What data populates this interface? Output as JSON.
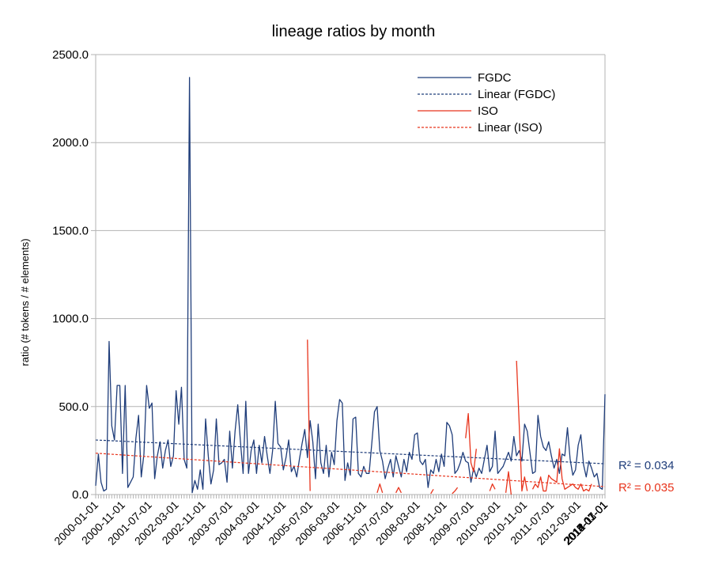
{
  "chart_data": {
    "type": "line",
    "title": "lineage ratios by month",
    "xlabel": "",
    "ylabel": "ratio (# tokens / # elements)",
    "ylim": [
      0,
      2500
    ],
    "yticks": [
      "0.0",
      "500.0",
      "1000.0",
      "1500.0",
      "2000.0",
      "2500.0"
    ],
    "xtick_labels": [
      "2000-01-01",
      "2000-11-01",
      "2001-07-01",
      "2002-03-01",
      "2002-11-01",
      "2003-07-01",
      "2004-03-01",
      "2004-11-01",
      "2005-07-01",
      "2006-03-01",
      "2006-11-01",
      "2007-07-01",
      "2008-03-01",
      "2008-11-01",
      "2009-07-01",
      "2010-03-01",
      "2010-11-01",
      "2011-07-01",
      "2012-03-01",
      "2012-11-01",
      "2013-07-01",
      "2014-03-01",
      "2014-11-01",
      "2015-07-01"
    ],
    "grid": true,
    "legend_placement": "top-right",
    "series": [
      {
        "name": "FGDC",
        "color": "#1f3d7a",
        "style": "solid",
        "values": [
          50,
          230,
          70,
          20,
          30,
          870,
          390,
          310,
          620,
          620,
          120,
          620,
          40,
          70,
          100,
          320,
          450,
          100,
          230,
          620,
          490,
          520,
          90,
          220,
          300,
          150,
          250,
          310,
          160,
          220,
          590,
          400,
          610,
          200,
          150,
          2370,
          10,
          80,
          30,
          140,
          30,
          430,
          220,
          60,
          140,
          430,
          170,
          180,
          200,
          70,
          360,
          150,
          360,
          510,
          300,
          120,
          530,
          120,
          250,
          310,
          120,
          280,
          180,
          330,
          220,
          120,
          250,
          530,
          290,
          270,
          140,
          210,
          310,
          130,
          160,
          100,
          200,
          290,
          370,
          210,
          420,
          300,
          90,
          400,
          180,
          120,
          280,
          100,
          240,
          170,
          420,
          540,
          520,
          80,
          180,
          110,
          430,
          440,
          120,
          100,
          160,
          120,
          120,
          290,
          470,
          500,
          250,
          190,
          90,
          150,
          200,
          100,
          220,
          160,
          100,
          200,
          130,
          240,
          200,
          340,
          350,
          190,
          170,
          200,
          40,
          140,
          120,
          200,
          130,
          230,
          160,
          410,
          390,
          340,
          120,
          140,
          180,
          240,
          190,
          180,
          70,
          150,
          100,
          150,
          120,
          200,
          280,
          130,
          160,
          360,
          120,
          140,
          160,
          200,
          240,
          190,
          330,
          220,
          250,
          190,
          400,
          360,
          240,
          120,
          130,
          450,
          330,
          270,
          250,
          300,
          220,
          150,
          200,
          120,
          230,
          220,
          380,
          200,
          110,
          140,
          280,
          340,
          170,
          100,
          190,
          150,
          100,
          120,
          40,
          30,
          570
        ]
      },
      {
        "name": "Linear (FGDC)",
        "color": "#1f3d7a",
        "style": "dashed",
        "values_start_end": [
          310,
          175
        ]
      },
      {
        "name": "ISO",
        "color": "#e8341c",
        "style": "solid",
        "values": [
          880,
          20,
          null,
          null,
          null,
          null,
          null,
          null,
          null,
          null,
          null,
          null,
          null,
          null,
          null,
          null,
          null,
          null,
          null,
          null,
          null,
          null,
          null,
          null,
          null,
          null,
          null,
          null,
          null,
          null,
          null,
          null,
          null,
          null,
          null,
          null,
          null,
          null,
          null,
          null,
          null,
          null,
          null,
          null,
          null,
          null,
          null,
          null,
          null,
          null,
          null,
          null,
          null,
          null,
          null,
          null,
          null,
          null,
          null,
          null,
          null,
          null,
          null,
          null,
          null,
          null,
          null,
          null,
          null,
          null,
          null,
          null,
          null,
          null,
          null,
          null,
          null,
          null,
          null,
          null,
          null,
          null,
          null,
          null,
          null,
          null,
          null,
          null,
          null,
          null,
          null,
          null,
          null,
          null,
          null,
          null,
          null,
          null,
          null,
          null,
          null,
          null,
          null,
          null,
          null,
          null,
          null,
          null,
          null,
          null,
          null,
          null,
          null,
          null,
          null,
          null,
          null,
          null,
          null,
          null,
          null,
          null,
          null,
          null,
          null,
          null,
          null,
          null,
          null,
          null,
          null,
          null,
          null,
          null,
          null,
          null,
          null,
          null,
          null,
          null,
          null,
          null,
          null,
          null,
          null,
          null,
          null,
          null,
          null,
          null,
          null,
          null,
          null,
          null,
          null,
          null,
          null,
          null,
          null,
          null,
          null,
          null,
          null,
          null,
          null,
          null,
          null,
          null,
          null,
          null,
          null,
          null,
          null,
          null,
          null,
          null,
          null,
          null,
          null,
          null,
          null,
          null,
          null,
          null,
          null,
          null,
          null,
          null,
          null,
          null,
          null,
          null
        ]
      },
      {
        "name": "Linear (ISO)",
        "color": "#e8341c",
        "style": "dashed",
        "values_start_end": [
          235,
          45
        ]
      }
    ],
    "iso_segments": [
      {
        "start_index": 79,
        "values": [
          880,
          20
        ]
      },
      {
        "start_index": 105,
        "values": [
          10,
          60,
          10
        ]
      },
      {
        "start_index": 112,
        "values": [
          10,
          40,
          10
        ]
      },
      {
        "start_index": 125,
        "values": [
          5,
          30
        ]
      },
      {
        "start_index": 133,
        "values": [
          5,
          20,
          40
        ]
      },
      {
        "start_index": 138,
        "values": [
          320,
          460,
          180,
          130,
          260
        ]
      },
      {
        "start_index": 147,
        "values": [
          20,
          60,
          30
        ]
      },
      {
        "start_index": 153,
        "values": [
          10,
          130,
          0
        ]
      },
      {
        "start_index": 157,
        "values": [
          760,
          400,
          20,
          100,
          20
        ]
      },
      {
        "start_index": 163,
        "values": [
          30,
          60,
          40,
          100,
          20,
          20,
          110,
          90,
          80,
          70,
          260,
          90,
          30,
          40,
          50,
          60,
          40,
          30,
          60,
          20,
          30,
          20,
          60
        ]
      }
    ],
    "annotations": [
      {
        "text": "R² = 0.034",
        "color": "#1f3d7a"
      },
      {
        "text": "R² = 0.035",
        "color": "#e8341c"
      }
    ]
  }
}
